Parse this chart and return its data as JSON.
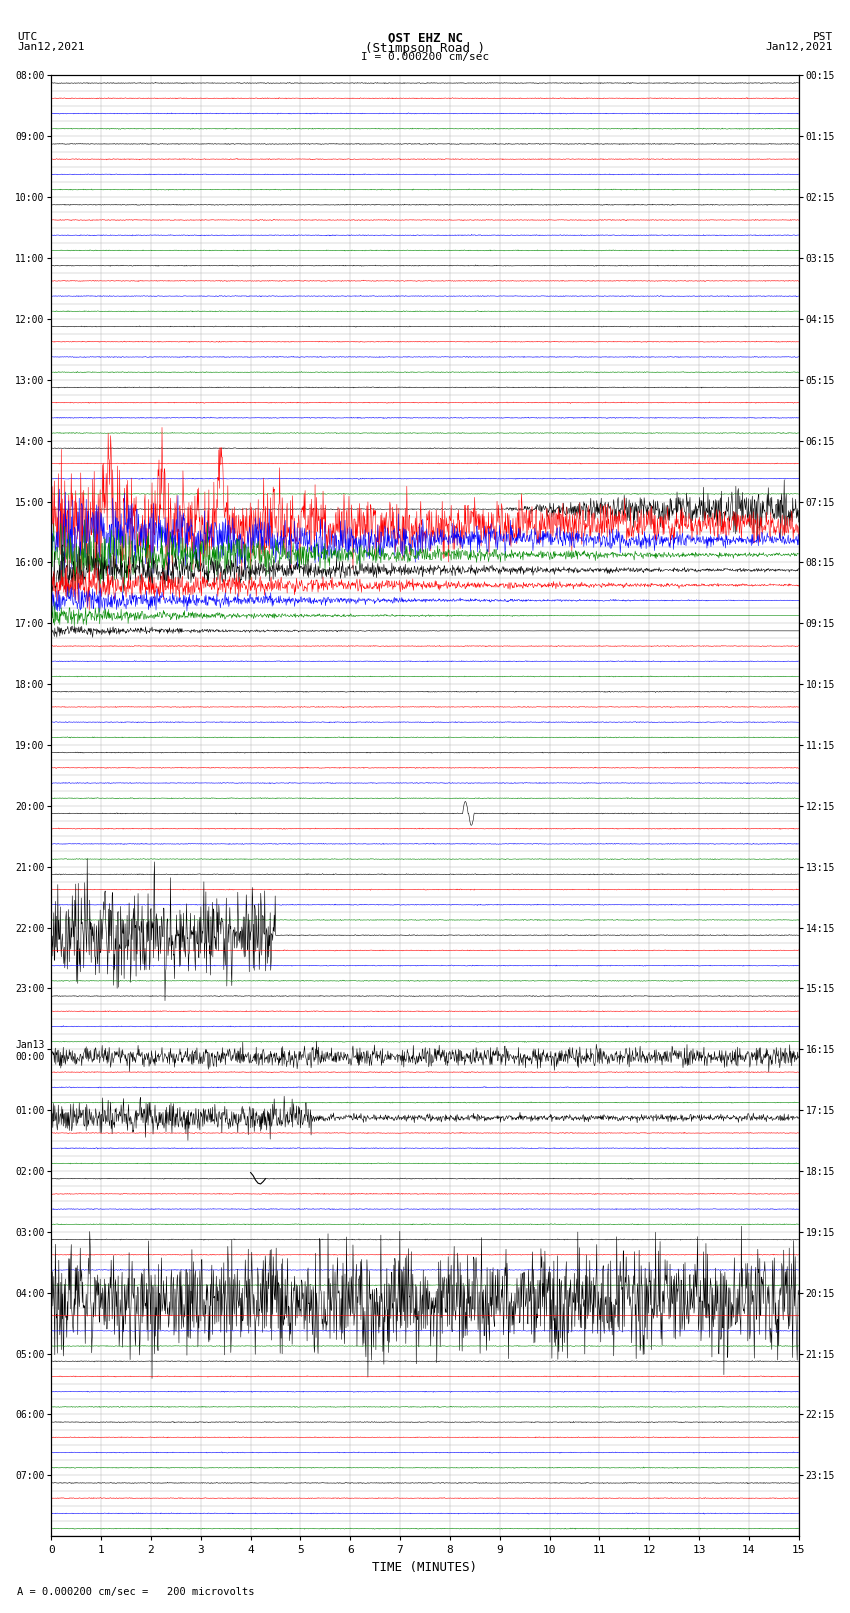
{
  "title_line1": "OST EHZ NC",
  "title_line2": "(Stimpson Road )",
  "title_line3": "I = 0.000200 cm/sec",
  "left_label_top": "UTC",
  "left_label_date": "Jan12,2021",
  "right_label_top": "PST",
  "right_label_date": "Jan12,2021",
  "xlabel": "TIME (MINUTES)",
  "scale_label": "A = 0.000200 cm/sec =   200 microvolts",
  "bg_color": "#ffffff",
  "grid_color": "#aaaaaa",
  "trace_colors": [
    "#000000",
    "#ff0000",
    "#0000ff",
    "#008800"
  ],
  "figwidth": 8.5,
  "figheight": 16.13
}
